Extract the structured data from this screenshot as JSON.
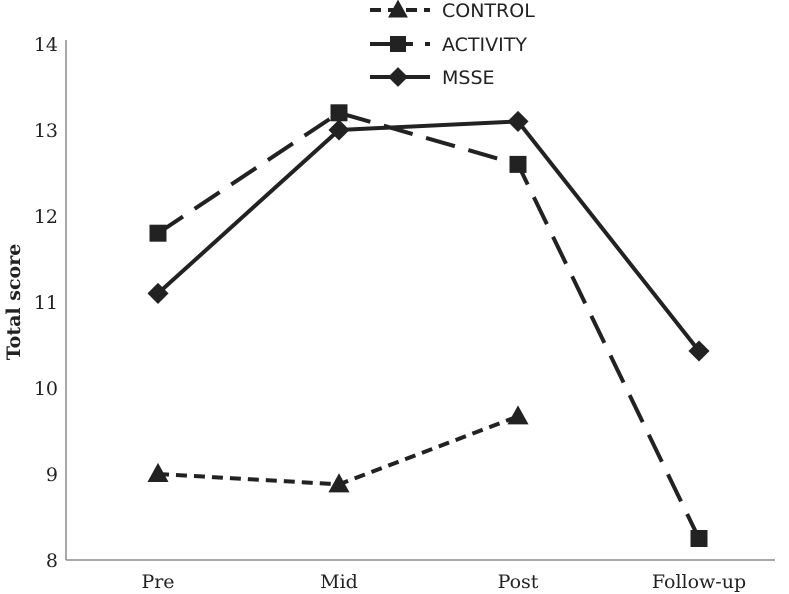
{
  "chart_data": {
    "type": "line",
    "title": "",
    "xlabel": "",
    "ylabel": "Total score",
    "categories": [
      "Pre",
      "Mid",
      "Post",
      "Follow-up"
    ],
    "ylim": [
      8,
      14
    ],
    "yticks": [
      "8",
      "9",
      "10",
      "11",
      "12",
      "13",
      "14"
    ],
    "grid": false,
    "legend_position": "top-center",
    "series": [
      {
        "name": "CONTROL",
        "values": [
          9.0,
          8.88,
          9.67,
          null
        ],
        "line_style": "short-dash",
        "marker": "triangle",
        "color": "#222222"
      },
      {
        "name": "ACTIVITY",
        "values": [
          11.8,
          13.2,
          12.6,
          8.25
        ],
        "line_style": "long-dash",
        "marker": "square",
        "color": "#222222"
      },
      {
        "name": "MSSE",
        "values": [
          11.1,
          13.0,
          13.1,
          10.43
        ],
        "line_style": "solid",
        "marker": "diamond",
        "color": "#222222"
      }
    ]
  }
}
